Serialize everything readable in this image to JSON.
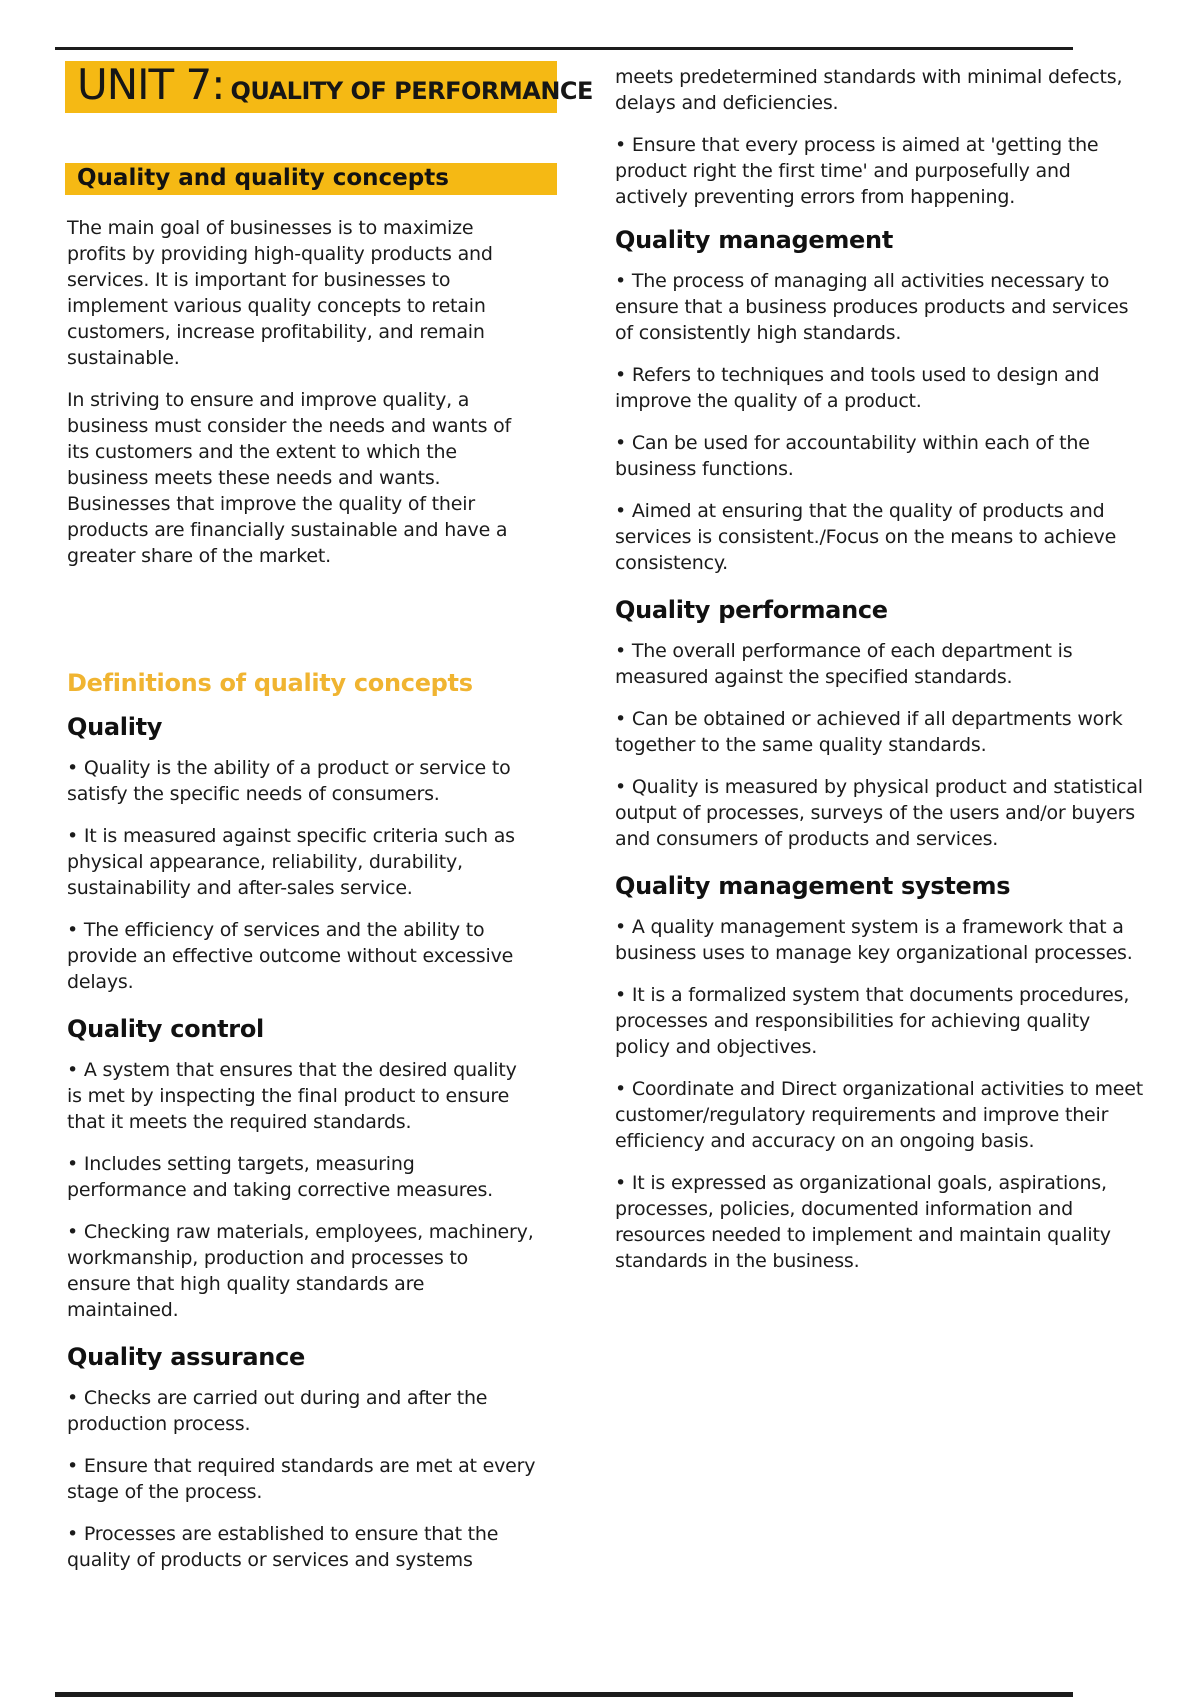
{
  "page": {
    "bullet_char": "•",
    "colors": {
      "highlight": "#F5B914",
      "accent_heading": "#F0B431",
      "text": "#1b1b1b",
      "rule": "#1c1c1c"
    }
  },
  "header": {
    "unit_label": "UNIT 7:",
    "unit_subtitle": "QUALITY OF PERFORMANCE"
  },
  "left_column": {
    "highlight_heading": "Quality and quality concepts",
    "intro_paragraphs": [
      "The main goal of businesses is to maximize profits by providing high-quality products and services. It is important for businesses to implement various quality concepts to retain customers, increase profitability, and remain sustainable.",
      "In striving to ensure and improve quality, a business must consider the needs and wants of its customers and the extent to which the business meets these needs and wants. Businesses that improve the quality of their products are financially sustainable and have a greater share of the market."
    ],
    "accent_heading": "Definitions of quality concepts",
    "sections": [
      {
        "heading": "Quality",
        "bullets": [
          "Quality is the ability of a product or service to satisfy the specific needs of consumers.",
          "It is measured against specific criteria such as physical appearance, reliability, durability, sustainability and after-sales service.",
          "The efficiency of services and the ability to provide an effective outcome without excessive delays."
        ]
      },
      {
        "heading": "Quality control",
        "bullets": [
          "A system that ensures that the desired quality is met by inspecting the final product to ensure that it meets the required standards.",
          "Includes setting targets, measuring performance and taking corrective measures.",
          "Checking raw materials, employees, machinery, workmanship, production and processes to ensure that high quality standards are maintained."
        ]
      },
      {
        "heading": "Quality assurance",
        "bullets": [
          "Checks are carried out during and after the production process.",
          "Ensure that required standards are met at every stage of the process.",
          "Processes are established to ensure that the quality of products or services and systems"
        ]
      }
    ]
  },
  "right_column": {
    "continuation": "meets predetermined standards with minimal defects, delays and deficiencies.",
    "lead_bullets": [
      "Ensure that every process is aimed at 'getting the product right the first time' and purposefully and actively preventing errors from happening."
    ],
    "sections": [
      {
        "heading": "Quality management",
        "bullets": [
          "The process of managing all activities necessary to ensure that a business produces products and services of consistently high standards.",
          "Refers to techniques and tools used to design and improve the quality of a product.",
          "Can be used for accountability within each of the business functions.",
          "Aimed at ensuring that the quality of products and services is consistent./Focus on the means to achieve consistency."
        ]
      },
      {
        "heading": "Quality performance",
        "bullets": [
          "The overall performance of each department is measured against the specified standards.",
          "Can be obtained or achieved if all departments work together to the same quality standards.",
          "Quality is measured by physical product and statistical output of processes, surveys of the users and/or buyers and consumers of products and services."
        ]
      },
      {
        "heading": "Quality management systems",
        "bullets": [
          "A quality management system is a framework that a business uses to manage key organizational processes.",
          "It is a formalized system that documents procedures, processes and responsibilities for achieving quality policy and objectives.",
          "Coordinate and Direct organizational activities to meet customer/regulatory requirements and improve their efficiency and accuracy on an ongoing basis.",
          "It is expressed as organizational goals, aspirations, processes, policies, documented information and resources needed to implement and maintain quality standards in the business."
        ]
      }
    ]
  }
}
